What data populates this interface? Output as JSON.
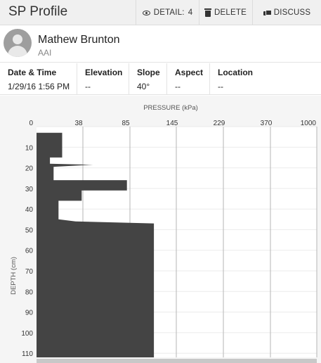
{
  "header": {
    "title": "SP Profile",
    "detail_label": "DETAIL:",
    "detail_value": "4",
    "delete_label": "DELETE",
    "discuss_label": "DISCUSS"
  },
  "user": {
    "name": "Mathew Brunton",
    "org": "AAI"
  },
  "meta": {
    "date_label": "Date & Time",
    "date_value": "1/29/16 1:56 PM",
    "elevation_label": "Elevation",
    "elevation_value": "--",
    "slope_label": "Slope",
    "slope_value": "40°",
    "aspect_label": "Aspect",
    "aspect_value": "--",
    "location_label": "Location",
    "location_value": "--"
  },
  "colors": {
    "profile_fill": "#444444",
    "grid_line": "#b5b5b5",
    "plot_background": "#ffffff"
  },
  "chart_data": {
    "type": "area",
    "title": "",
    "xlabel": "PRESSURE (kPa)",
    "ylabel": "DEPTH (cm)",
    "x_ticks": [
      "0",
      "38",
      "85",
      "145",
      "229",
      "370",
      "1000"
    ],
    "y_ticks": [
      "0",
      "10",
      "20",
      "30",
      "40",
      "50",
      "60",
      "70",
      "80",
      "90",
      "100",
      "110"
    ],
    "x_scale": "nonlinear",
    "ylim": [
      0,
      112
    ],
    "grid": true,
    "profile": [
      {
        "depth": 3,
        "pressure": 21
      },
      {
        "depth": 15,
        "pressure": 21
      },
      {
        "depth": 15,
        "pressure": 11
      },
      {
        "depth": 18,
        "pressure": 11
      },
      {
        "depth": 18.5,
        "pressure": 48
      },
      {
        "depth": 19.5,
        "pressure": 14
      },
      {
        "depth": 26,
        "pressure": 14
      },
      {
        "depth": 26,
        "pressure": 82
      },
      {
        "depth": 31,
        "pressure": 82
      },
      {
        "depth": 31,
        "pressure": 37
      },
      {
        "depth": 36,
        "pressure": 37
      },
      {
        "depth": 36,
        "pressure": 18
      },
      {
        "depth": 45,
        "pressure": 18
      },
      {
        "depth": 46,
        "pressure": 32
      },
      {
        "depth": 47,
        "pressure": 116
      },
      {
        "depth": 112,
        "pressure": 116
      }
    ]
  }
}
